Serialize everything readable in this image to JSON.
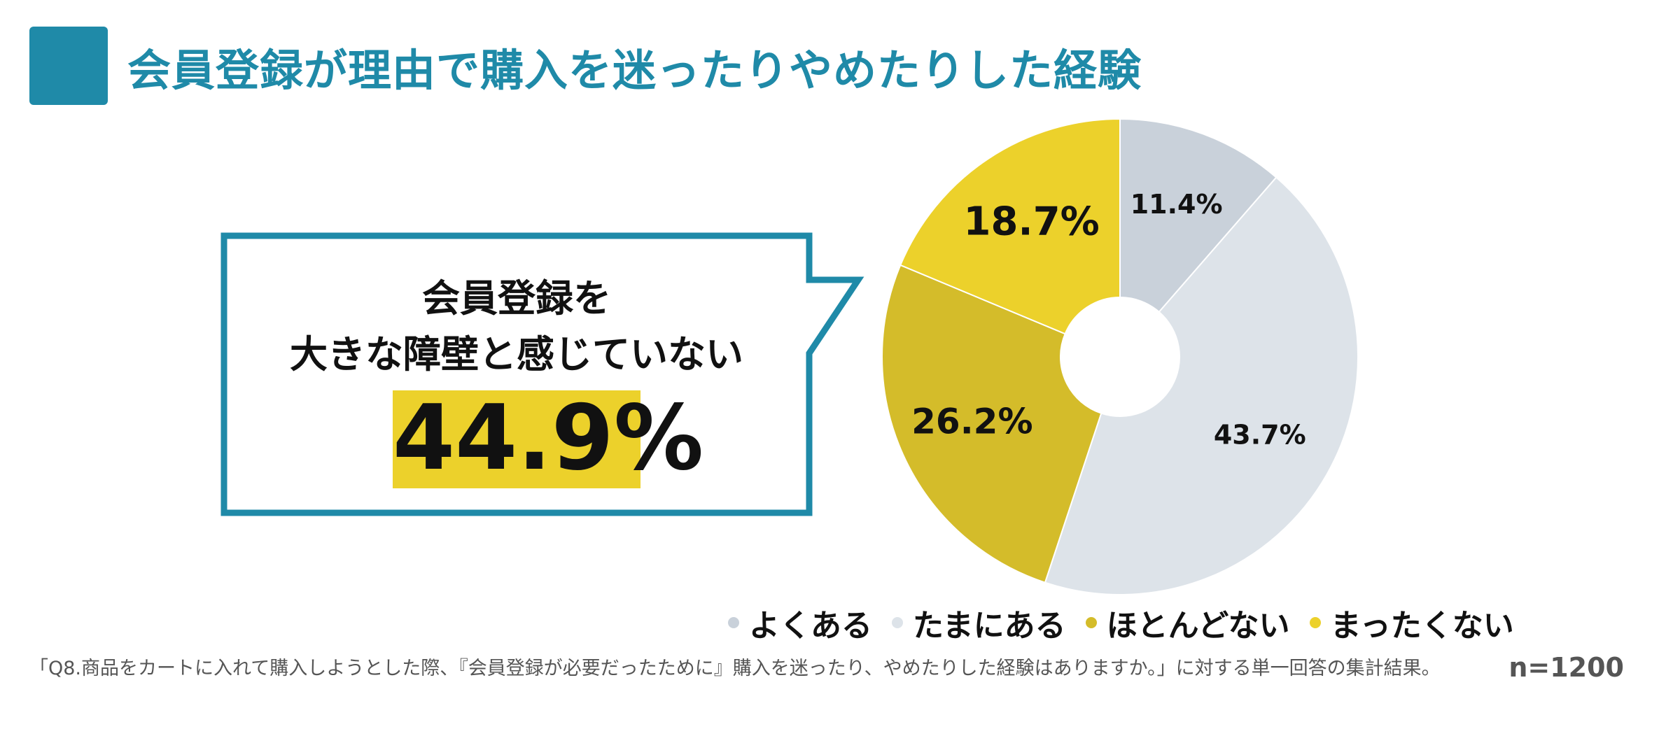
{
  "title": "会員登録が理由で購入を迷ったりやめたりした経験",
  "callout": {
    "line1": "会員登録を",
    "line2": "大きな障壁と感じていない",
    "value": "44.9%"
  },
  "colors": {
    "accent": "#1f8aa8",
    "highlight": "#ecd12b"
  },
  "chart_data": {
    "type": "pie",
    "title": "会員登録が理由で購入を迷ったりやめたりした経験",
    "donut": true,
    "start": "top",
    "direction": "clockwise",
    "categories": [
      "よくある",
      "たまにある",
      "ほとんどない",
      "まったくない"
    ],
    "values": [
      11.4,
      43.7,
      26.2,
      18.7
    ],
    "labels": [
      "11.4%",
      "43.7%",
      "26.2%",
      "18.7%"
    ],
    "colors": [
      "#c9d1da",
      "#dde3e9",
      "#d4bc2a",
      "#ecd12b"
    ],
    "legend_position": "bottom"
  },
  "footnote": "「Q8.商品をカートに入れて購入しようとした際、『会員登録が必要だったために』購入を迷ったり、やめたりした経験はありますか。」に対する単一回答の集計結果。",
  "sample_size": "n=1200"
}
